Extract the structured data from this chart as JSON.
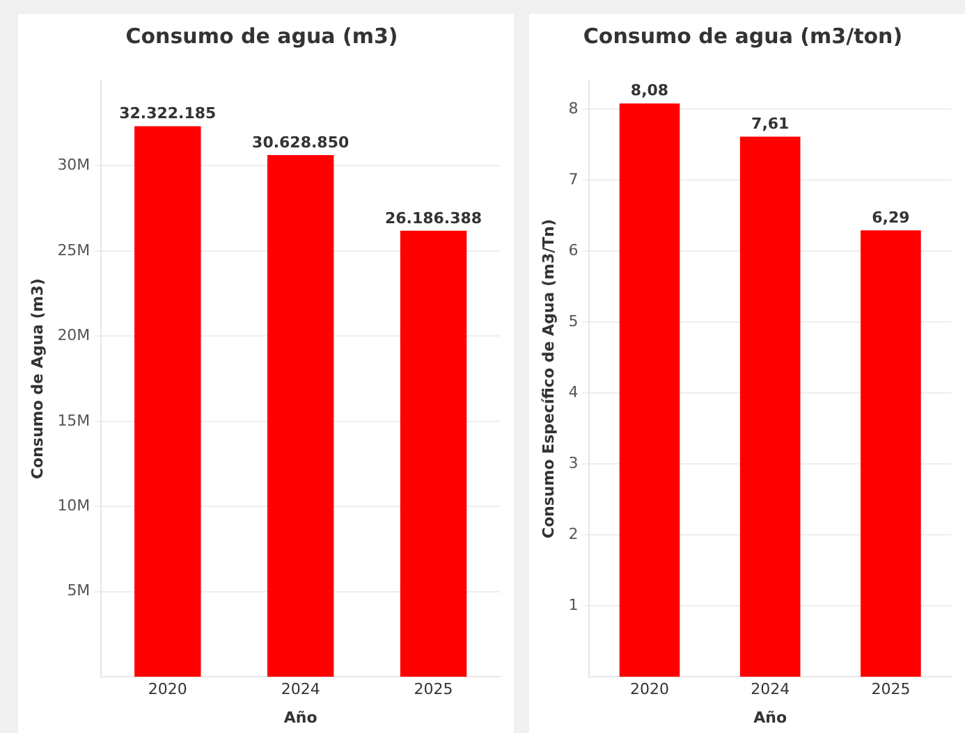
{
  "chart_data": [
    {
      "type": "bar",
      "title": "Consumo de agua (m3)",
      "xlabel": "Año",
      "ylabel": "Consumo de Agua (m3)",
      "categories": [
        "2020",
        "2024",
        "2025"
      ],
      "series": [
        {
          "color": "#ff0000",
          "values": [
            32322185,
            30628850,
            26186388
          ]
        }
      ],
      "value_labels": [
        "32.322.185",
        "30.628.850",
        "26.186.388"
      ],
      "ylim": [
        0,
        35000000
      ],
      "yticks": [
        {
          "value": 5000000,
          "label": "5M"
        },
        {
          "value": 10000000,
          "label": "10M"
        },
        {
          "value": 15000000,
          "label": "15M"
        },
        {
          "value": 20000000,
          "label": "20M"
        },
        {
          "value": 25000000,
          "label": "25M"
        },
        {
          "value": 30000000,
          "label": "30M"
        }
      ],
      "grid": "y",
      "legend": false
    },
    {
      "type": "bar",
      "title": "Consumo de agua (m3/ton)",
      "xlabel": "Año",
      "ylabel": "Consumo Específico de Agua (m3/Tn)",
      "categories": [
        "2020",
        "2024",
        "2025"
      ],
      "series": [
        {
          "color": "#ff0000",
          "values": [
            8.08,
            7.61,
            6.29
          ]
        }
      ],
      "value_labels": [
        "8,08",
        "7,61",
        "6,29"
      ],
      "ylim": [
        0,
        8.4
      ],
      "yticks": [
        1,
        2,
        3,
        4,
        5,
        6,
        7,
        8
      ],
      "grid": "y",
      "legend": false
    }
  ]
}
